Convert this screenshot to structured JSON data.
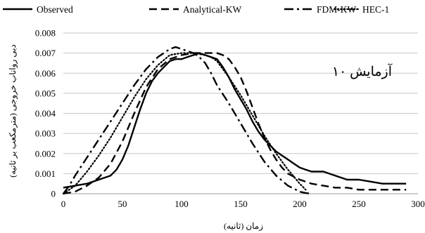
{
  "chart_data": {
    "type": "line",
    "title": "",
    "annotation": "آزمایش ۱۰",
    "xlabel": "زمان (ثانیه)",
    "ylabel": "دبی رواناب خروجی (مترمکعب بر ثانیه)",
    "xlim": [
      0,
      300
    ],
    "ylim": [
      0,
      0.008
    ],
    "xticks": [
      "0",
      "50",
      "100",
      "150",
      "200",
      "250",
      "300"
    ],
    "yticks": [
      "0",
      "0.001",
      "0.002",
      "0.003",
      "0.004",
      "0.005",
      "0.006",
      "0.007",
      "0.008"
    ],
    "grid": "horizontal",
    "legend_position": "top",
    "series": [
      {
        "name": "Observed",
        "style": "solid",
        "x": [
          0,
          10,
          20,
          30,
          40,
          45,
          50,
          55,
          60,
          65,
          70,
          75,
          80,
          85,
          90,
          95,
          100,
          105,
          110,
          115,
          120,
          125,
          130,
          135,
          140,
          145,
          150,
          155,
          160,
          165,
          170,
          175,
          180,
          185,
          190,
          195,
          200,
          205,
          210,
          215,
          220,
          230,
          240,
          250,
          260,
          270,
          280,
          290
        ],
        "y": [
          0.0003,
          0.0004,
          0.0005,
          0.0007,
          0.0009,
          0.0012,
          0.0017,
          0.0024,
          0.0033,
          0.0042,
          0.005,
          0.0056,
          0.006,
          0.0063,
          0.0066,
          0.0067,
          0.0067,
          0.0068,
          0.0069,
          0.007,
          0.0069,
          0.0068,
          0.0067,
          0.0063,
          0.0058,
          0.0052,
          0.0047,
          0.0042,
          0.0036,
          0.0031,
          0.0027,
          0.0024,
          0.0021,
          0.0019,
          0.0017,
          0.0015,
          0.0013,
          0.0012,
          0.0011,
          0.0011,
          0.0011,
          0.0009,
          0.0007,
          0.0007,
          0.0006,
          0.0005,
          0.0005,
          0.0005
        ]
      },
      {
        "name": "Analytical-KW",
        "style": "dashed",
        "x": [
          0,
          10,
          20,
          30,
          40,
          50,
          60,
          70,
          80,
          90,
          100,
          110,
          120,
          130,
          135,
          140,
          145,
          150,
          155,
          160,
          165,
          170,
          175,
          180,
          185,
          190,
          200,
          210,
          220,
          230,
          240,
          250,
          260,
          270,
          280,
          290
        ],
        "y": [
          0,
          0.0001,
          0.0004,
          0.0008,
          0.0015,
          0.0026,
          0.004,
          0.0053,
          0.0062,
          0.0067,
          0.0069,
          0.007,
          0.007,
          0.007,
          0.0069,
          0.0067,
          0.0063,
          0.0058,
          0.0051,
          0.0043,
          0.0035,
          0.0028,
          0.0022,
          0.0017,
          0.0013,
          0.001,
          0.0007,
          0.0005,
          0.0004,
          0.0003,
          0.0003,
          0.0002,
          0.0002,
          0.0002,
          0.0002,
          0.0002
        ]
      },
      {
        "name": "FDM-KW",
        "style": "dash-dot",
        "x": [
          0,
          5,
          10,
          20,
          30,
          40,
          50,
          60,
          70,
          80,
          90,
          95,
          100,
          105,
          110,
          115,
          120,
          125,
          130,
          140,
          150,
          160,
          170,
          180,
          190,
          200,
          205,
          210
        ],
        "y": [
          0,
          0.0004,
          0.0009,
          0.0018,
          0.0027,
          0.0036,
          0.0045,
          0.0054,
          0.0062,
          0.0068,
          0.0072,
          0.0073,
          0.0072,
          0.0071,
          0.007,
          0.0068,
          0.0065,
          0.006,
          0.0054,
          0.0045,
          0.0035,
          0.0025,
          0.0016,
          0.0009,
          0.0004,
          0.0001,
          3e-05,
          0
        ]
      },
      {
        "name": "HEC-1",
        "style": "dotted",
        "x": [
          0,
          10,
          20,
          30,
          40,
          50,
          60,
          70,
          80,
          90,
          100,
          110,
          120,
          125,
          130,
          135,
          140,
          150,
          160,
          170,
          180,
          190,
          200,
          205
        ],
        "y": [
          0,
          0.0004,
          0.0011,
          0.0019,
          0.0028,
          0.0038,
          0.0048,
          0.0057,
          0.0064,
          0.0069,
          0.007,
          0.007,
          0.0069,
          0.0068,
          0.0066,
          0.0062,
          0.0058,
          0.0049,
          0.0039,
          0.0029,
          0.002,
          0.0012,
          0.0005,
          0.0002
        ]
      }
    ]
  }
}
